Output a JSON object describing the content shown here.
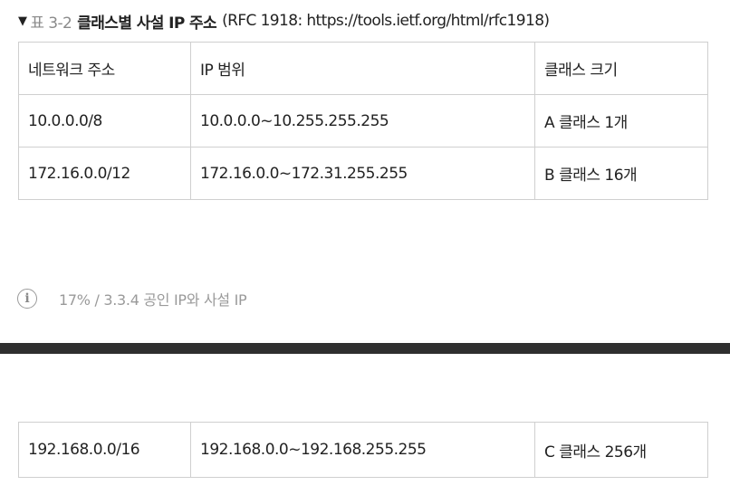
{
  "caption": {
    "marker": "▼",
    "number": "표 3-2",
    "title": "클래스별 사설 IP 주소",
    "source": "(RFC 1918: https://tools.ietf.org/html/rfc1918)"
  },
  "table": {
    "headers": [
      "네트워크 주소",
      "IP 범위",
      "클래스 크기"
    ],
    "rows": [
      [
        "10.0.0.0/8",
        "10.0.0.0~10.255.255.255",
        "A 클래스 1개"
      ],
      [
        "172.16.0.0/12",
        "172.16.0.0~172.31.255.255",
        "B 클래스 16개"
      ],
      [
        "192.168.0.0/16",
        "192.168.0.0~192.168.255.255",
        "C 클래스 256개"
      ]
    ]
  },
  "progress": {
    "icon": "info-icon",
    "icon_glyph": "i",
    "percent": "17%",
    "separator": "/",
    "section": "3.3.4 공인 IP와 사설 IP"
  },
  "colors": {
    "text": "#222222",
    "muted": "#9a9a9a",
    "border": "#cfcfcf",
    "divider": "#2f2f2f"
  }
}
